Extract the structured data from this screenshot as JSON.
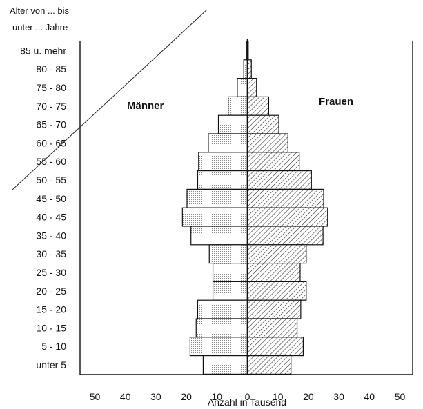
{
  "chart_data": {
    "type": "bar",
    "orientation": "horizontal",
    "subtype": "population-pyramid",
    "corner_label_line1": "Alter von ... bis",
    "corner_label_line2": "unter ... Jahre",
    "xlabel": "Anzahl in Tausend",
    "left_ticks": [
      "50",
      "40",
      "30",
      "20",
      "10",
      "0"
    ],
    "right_ticks": [
      "10",
      "20",
      "30",
      "40",
      "50"
    ],
    "xlim": [
      0,
      50
    ],
    "grid": false,
    "categories": [
      "85 u. mehr",
      "80 - 85",
      "75 - 80",
      "70 - 75",
      "65 - 70",
      "60 - 65",
      "55 - 60",
      "50 - 55",
      "45 - 50",
      "40 - 45",
      "35 - 40",
      "30 - 35",
      "25 - 30",
      "20 - 25",
      "15 - 20",
      "10 - 15",
      "5 - 10",
      "unter 5"
    ],
    "series": [
      {
        "name": "Männer",
        "side": "left",
        "pattern": "dotted",
        "values": [
          0.3,
          1.2,
          3.3,
          6.3,
          9.5,
          12.8,
          16.0,
          16.3,
          19.8,
          21.3,
          18.5,
          12.5,
          11.3,
          11.3,
          16.3,
          16.8,
          18.8,
          14.5
        ]
      },
      {
        "name": "Frauen",
        "side": "right",
        "pattern": "hatched",
        "values": [
          0.3,
          1.3,
          3.0,
          7.0,
          10.3,
          13.3,
          17.0,
          21.0,
          25.0,
          26.3,
          24.8,
          19.3,
          17.3,
          19.3,
          17.5,
          16.3,
          18.3,
          14.3
        ]
      }
    ]
  }
}
